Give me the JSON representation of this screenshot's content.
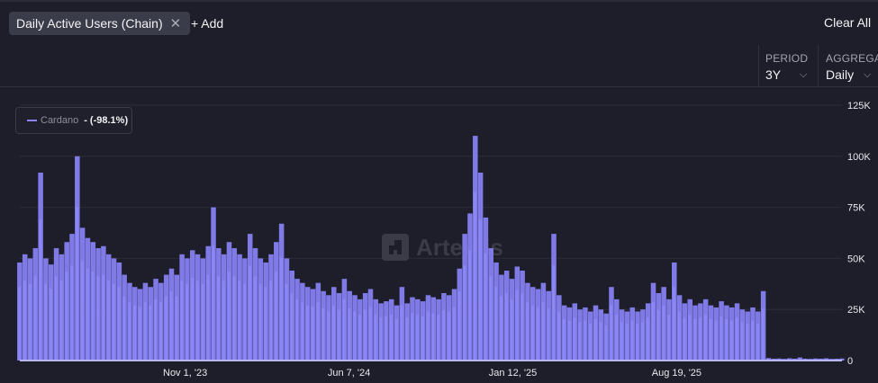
{
  "header": {
    "metric_chip": "Daily Active Users (Chain)",
    "chip_close_icon": "close-icon",
    "add_label": "+ Add",
    "clear_all_label": "Clear All"
  },
  "controls": {
    "period": {
      "label": "PERIOD",
      "value": "3Y"
    },
    "aggregate": {
      "label": "AGGREGATE",
      "value": "Daily"
    }
  },
  "legend": {
    "series": "Cardano",
    "change": "- (-98.1%)"
  },
  "watermark": "Artemis",
  "colors": {
    "series": "#8a85f0",
    "background": "#1d1e29"
  },
  "chart_data": {
    "type": "bar",
    "ylim": [
      0,
      125000
    ],
    "yticks": [
      0,
      25000,
      50000,
      75000,
      100000,
      125000
    ],
    "ytick_labels": [
      "0",
      "25K",
      "50K",
      "75K",
      "100K",
      "125K"
    ],
    "xtick_labels": [
      "Nov 1, '23",
      "Jun 7, '24",
      "Jan 12, '25",
      "Aug 19, '25"
    ],
    "xtick_dates": [
      "2023-11-01",
      "2024-06-07",
      "2025-01-12",
      "2025-08-19"
    ],
    "xlim": [
      "2023-03-25",
      "2026-03-28"
    ],
    "grid": true,
    "legend": "top-left",
    "series": [
      {
        "name": "Cardano",
        "dates": [
          "2023-03-25",
          "2023-04-01",
          "2023-04-08",
          "2023-04-15",
          "2023-04-22",
          "2023-04-29",
          "2023-05-06",
          "2023-05-13",
          "2023-05-20",
          "2023-05-27",
          "2023-06-03",
          "2023-06-10",
          "2023-06-17",
          "2023-06-24",
          "2023-07-01",
          "2023-07-08",
          "2023-07-15",
          "2023-07-22",
          "2023-07-29",
          "2023-08-05",
          "2023-08-12",
          "2023-08-19",
          "2023-08-26",
          "2023-09-02",
          "2023-09-09",
          "2023-09-16",
          "2023-09-23",
          "2023-09-30",
          "2023-10-07",
          "2023-10-14",
          "2023-10-21",
          "2023-10-28",
          "2023-11-04",
          "2023-11-11",
          "2023-11-18",
          "2023-11-25",
          "2023-12-02",
          "2023-12-09",
          "2023-12-16",
          "2023-12-23",
          "2023-12-30",
          "2024-01-06",
          "2024-01-13",
          "2024-01-20",
          "2024-01-27",
          "2024-02-03",
          "2024-02-10",
          "2024-02-17",
          "2024-02-24",
          "2024-03-02",
          "2024-03-09",
          "2024-03-16",
          "2024-03-23",
          "2024-03-30",
          "2024-04-06",
          "2024-04-13",
          "2024-04-20",
          "2024-04-27",
          "2024-05-04",
          "2024-05-11",
          "2024-05-18",
          "2024-05-25",
          "2024-06-01",
          "2024-06-08",
          "2024-06-15",
          "2024-06-22",
          "2024-06-29",
          "2024-07-06",
          "2024-07-13",
          "2024-07-20",
          "2024-07-27",
          "2024-08-03",
          "2024-08-10",
          "2024-08-17",
          "2024-08-24",
          "2024-08-31",
          "2024-09-07",
          "2024-09-14",
          "2024-09-21",
          "2024-09-28",
          "2024-10-05",
          "2024-10-12",
          "2024-10-19",
          "2024-10-26",
          "2024-11-02",
          "2024-11-09",
          "2024-11-16",
          "2024-11-23",
          "2024-11-30",
          "2024-12-07",
          "2024-12-14",
          "2024-12-21",
          "2024-12-28",
          "2025-01-04",
          "2025-01-11",
          "2025-01-18",
          "2025-01-25",
          "2025-02-01",
          "2025-02-08",
          "2025-02-15",
          "2025-02-22",
          "2025-03-01",
          "2025-03-08",
          "2025-03-15",
          "2025-03-22",
          "2025-03-29",
          "2025-04-05",
          "2025-04-12",
          "2025-04-19",
          "2025-04-26",
          "2025-05-03",
          "2025-05-10",
          "2025-05-17",
          "2025-05-24",
          "2025-05-31",
          "2025-06-07",
          "2025-06-14",
          "2025-06-21",
          "2025-06-28",
          "2025-07-05",
          "2025-07-12",
          "2025-07-19",
          "2025-07-26",
          "2025-08-02",
          "2025-08-09",
          "2025-08-16",
          "2025-08-23",
          "2025-08-30",
          "2025-09-06",
          "2025-09-13",
          "2025-09-20",
          "2025-09-27",
          "2025-10-04",
          "2025-10-11",
          "2025-10-18",
          "2025-10-25",
          "2025-11-01",
          "2025-11-08",
          "2025-11-15",
          "2025-11-22",
          "2025-11-29",
          "2025-12-06",
          "2025-12-13",
          "2025-12-20",
          "2025-12-27",
          "2026-01-03",
          "2026-01-10",
          "2026-01-17",
          "2026-01-24",
          "2026-01-31",
          "2026-02-07",
          "2026-02-14",
          "2026-02-21",
          "2026-02-28",
          "2026-03-07",
          "2026-03-14",
          "2026-03-21",
          "2026-03-28"
        ],
        "values": [
          48000,
          52000,
          50000,
          55000,
          92000,
          50000,
          47000,
          55000,
          52000,
          58000,
          62000,
          100000,
          65000,
          60000,
          58000,
          55000,
          56000,
          52000,
          50000,
          48000,
          42000,
          38000,
          36000,
          35000,
          38000,
          36000,
          40000,
          38000,
          42000,
          45000,
          42000,
          52000,
          50000,
          54000,
          52000,
          50000,
          56000,
          75000,
          55000,
          52000,
          58000,
          55000,
          52000,
          50000,
          62000,
          55000,
          50000,
          48000,
          52000,
          58000,
          67000,
          50000,
          44000,
          40000,
          38000,
          36000,
          35000,
          38000,
          34000,
          32000,
          36000,
          33000,
          40000,
          34000,
          32000,
          30000,
          33000,
          35000,
          30000,
          28000,
          29000,
          30000,
          27000,
          36000,
          28000,
          31000,
          30000,
          29000,
          32000,
          31000,
          30000,
          33000,
          32000,
          35000,
          45000,
          62000,
          72000,
          110000,
          92000,
          70000,
          55000,
          48000,
          42000,
          44000,
          40000,
          46000,
          44000,
          38000,
          36000,
          35000,
          38000,
          34000,
          62000,
          32000,
          27000,
          26000,
          28000,
          25000,
          26000,
          24000,
          27000,
          25000,
          23000,
          36000,
          30000,
          25000,
          24000,
          26000,
          24000,
          25000,
          28000,
          38000,
          33000,
          36000,
          30000,
          48000,
          32000,
          28000,
          30000,
          27000,
          28000,
          30000,
          27000,
          26000,
          29000,
          27000,
          26000,
          28000,
          25000,
          24000,
          26000,
          24000,
          34000,
          1200,
          900,
          1000,
          800,
          1100,
          900,
          1500,
          900,
          800,
          1000,
          900,
          1100,
          800,
          900,
          1000
        ]
      }
    ]
  }
}
